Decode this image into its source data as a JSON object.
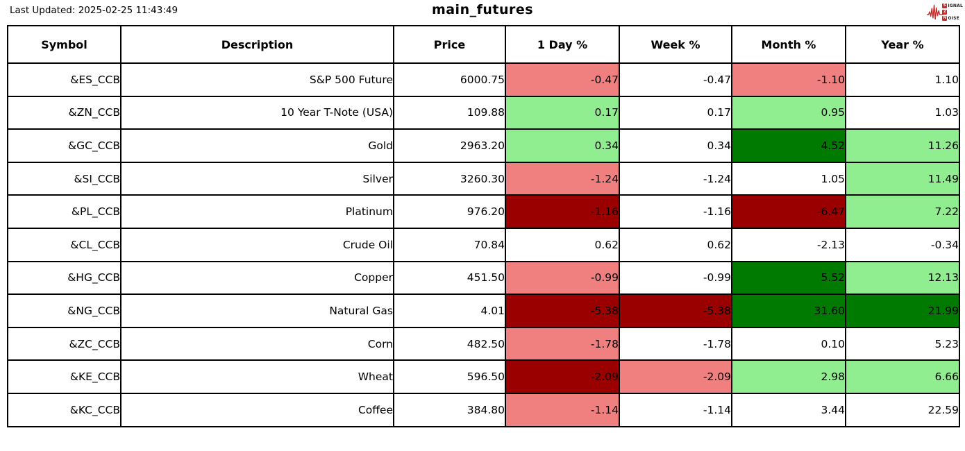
{
  "meta": {
    "last_updated": "Last Updated: 2025-02-25 11:43:49",
    "title": "main_futures"
  },
  "logo": {
    "line1_boxed": "S",
    "line1_rest": "IGNAL",
    "line2_boxed": "2",
    "line2_rest": "",
    "line3_boxed": "N",
    "line3_rest": "OISE",
    "accent_color": "#c62828"
  },
  "colors": {
    "pos_strong": "#007A00",
    "pos_mild": "#90EE90",
    "neg_strong": "#9A0000",
    "neg_mild": "#F08080",
    "neutral": "#FFFFFF"
  },
  "table": {
    "columns": [
      "Symbol",
      "Description",
      "Price",
      "1 Day %",
      "Week %",
      "Month %",
      "Year %"
    ],
    "rows": [
      {
        "symbol": "&ES_CCB",
        "description": "S&P 500 Future",
        "price": "6000.75",
        "day": {
          "v": "-0.47",
          "bg": "neg_mild"
        },
        "week": {
          "v": "-0.47",
          "bg": "neutral"
        },
        "month": {
          "v": "-1.10",
          "bg": "neg_mild"
        },
        "year": {
          "v": "1.10",
          "bg": "neutral"
        }
      },
      {
        "symbol": "&ZN_CCB",
        "description": "10 Year T-Note (USA)",
        "price": "109.88",
        "day": {
          "v": "0.17",
          "bg": "pos_mild"
        },
        "week": {
          "v": "0.17",
          "bg": "neutral"
        },
        "month": {
          "v": "0.95",
          "bg": "pos_mild"
        },
        "year": {
          "v": "1.03",
          "bg": "neutral"
        }
      },
      {
        "symbol": "&GC_CCB",
        "description": "Gold",
        "price": "2963.20",
        "day": {
          "v": "0.34",
          "bg": "pos_mild"
        },
        "week": {
          "v": "0.34",
          "bg": "neutral"
        },
        "month": {
          "v": "4.52",
          "bg": "pos_strong"
        },
        "year": {
          "v": "11.26",
          "bg": "pos_mild"
        }
      },
      {
        "symbol": "&SI_CCB",
        "description": "Silver",
        "price": "3260.30",
        "day": {
          "v": "-1.24",
          "bg": "neg_mild"
        },
        "week": {
          "v": "-1.24",
          "bg": "neutral"
        },
        "month": {
          "v": "1.05",
          "bg": "neutral"
        },
        "year": {
          "v": "11.49",
          "bg": "pos_mild"
        }
      },
      {
        "symbol": "&PL_CCB",
        "description": "Platinum",
        "price": "976.20",
        "day": {
          "v": "-1.16",
          "bg": "neg_strong"
        },
        "week": {
          "v": "-1.16",
          "bg": "neutral"
        },
        "month": {
          "v": "-6.47",
          "bg": "neg_strong"
        },
        "year": {
          "v": "7.22",
          "bg": "pos_mild"
        }
      },
      {
        "symbol": "&CL_CCB",
        "description": "Crude Oil",
        "price": "70.84",
        "day": {
          "v": "0.62",
          "bg": "neutral"
        },
        "week": {
          "v": "0.62",
          "bg": "neutral"
        },
        "month": {
          "v": "-2.13",
          "bg": "neutral"
        },
        "year": {
          "v": "-0.34",
          "bg": "neutral"
        }
      },
      {
        "symbol": "&HG_CCB",
        "description": "Copper",
        "price": "451.50",
        "day": {
          "v": "-0.99",
          "bg": "neg_mild"
        },
        "week": {
          "v": "-0.99",
          "bg": "neutral"
        },
        "month": {
          "v": "5.52",
          "bg": "pos_strong"
        },
        "year": {
          "v": "12.13",
          "bg": "pos_mild"
        }
      },
      {
        "symbol": "&NG_CCB",
        "description": "Natural Gas",
        "price": "4.01",
        "day": {
          "v": "-5.38",
          "bg": "neg_strong"
        },
        "week": {
          "v": "-5.38",
          "bg": "neg_strong"
        },
        "month": {
          "v": "31.60",
          "bg": "pos_strong"
        },
        "year": {
          "v": "21.99",
          "bg": "pos_strong"
        }
      },
      {
        "symbol": "&ZC_CCB",
        "description": "Corn",
        "price": "482.50",
        "day": {
          "v": "-1.78",
          "bg": "neg_mild"
        },
        "week": {
          "v": "-1.78",
          "bg": "neutral"
        },
        "month": {
          "v": "0.10",
          "bg": "neutral"
        },
        "year": {
          "v": "5.23",
          "bg": "neutral"
        }
      },
      {
        "symbol": "&KE_CCB",
        "description": "Wheat",
        "price": "596.50",
        "day": {
          "v": "-2.09",
          "bg": "neg_strong"
        },
        "week": {
          "v": "-2.09",
          "bg": "neg_mild"
        },
        "month": {
          "v": "2.98",
          "bg": "pos_mild"
        },
        "year": {
          "v": "6.66",
          "bg": "pos_mild"
        }
      },
      {
        "symbol": "&KC_CCB",
        "description": "Coffee",
        "price": "384.80",
        "day": {
          "v": "-1.14",
          "bg": "neg_mild"
        },
        "week": {
          "v": "-1.14",
          "bg": "neutral"
        },
        "month": {
          "v": "3.44",
          "bg": "neutral"
        },
        "year": {
          "v": "22.59",
          "bg": "neutral"
        }
      }
    ]
  }
}
